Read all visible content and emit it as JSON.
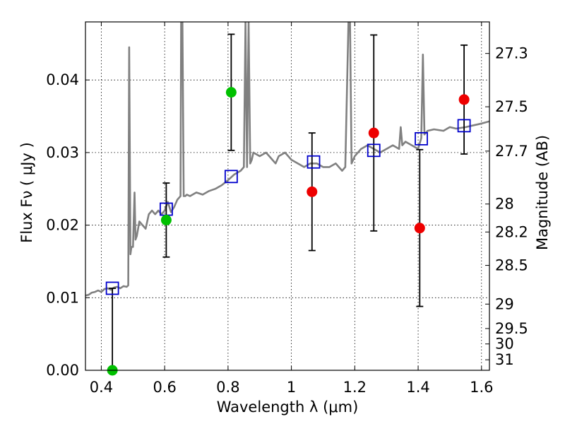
{
  "chart_data": {
    "type": "scatter",
    "xlabel": "Wavelength  λ (μm)",
    "ylabel": "Flux  Fν  ( μJy )",
    "y2label": "Magnitude (AB)",
    "xlim": [
      0.35,
      1.625
    ],
    "ylim": [
      0.0,
      0.048
    ],
    "grid": true,
    "x_ticks": [
      {
        "value": 0.4,
        "label": "0.4"
      },
      {
        "value": 0.6,
        "label": "0.6"
      },
      {
        "value": 0.8,
        "label": "0.8"
      },
      {
        "value": 1.0,
        "label": "1"
      },
      {
        "value": 1.2,
        "label": "1.2"
      },
      {
        "value": 1.4,
        "label": "1.4"
      },
      {
        "value": 1.6,
        "label": "1.6"
      }
    ],
    "y_ticks": [
      {
        "value": 0.0,
        "label": "0.00"
      },
      {
        "value": 0.01,
        "label": "0.01"
      },
      {
        "value": 0.02,
        "label": "0.02"
      },
      {
        "value": 0.03,
        "label": "0.03"
      },
      {
        "value": 0.04,
        "label": "0.04"
      }
    ],
    "mag_ticks": [
      "27.3",
      "27.5",
      "27.7",
      "28",
      "28.2",
      "28.5",
      "29",
      "29.5",
      "30",
      "31"
    ],
    "series": [
      {
        "kind": "template_spectrum",
        "color": "#808080",
        "x": [
          0.35,
          0.36,
          0.37,
          0.38,
          0.39,
          0.4,
          0.41,
          0.42,
          0.43,
          0.44,
          0.45,
          0.46,
          0.47,
          0.48,
          0.485,
          0.488,
          0.492,
          0.495,
          0.5,
          0.505,
          0.508,
          0.512,
          0.52,
          0.53,
          0.54,
          0.55,
          0.56,
          0.57,
          0.58,
          0.59,
          0.6,
          0.61,
          0.62,
          0.63,
          0.64,
          0.65,
          0.652,
          0.656,
          0.66,
          0.665,
          0.67,
          0.68,
          0.7,
          0.72,
          0.74,
          0.76,
          0.78,
          0.8,
          0.82,
          0.84,
          0.85,
          0.855,
          0.86,
          0.865,
          0.87,
          0.875,
          0.88,
          0.9,
          0.92,
          0.94,
          0.95,
          0.96,
          0.98,
          1.0,
          1.02,
          1.04,
          1.06,
          1.08,
          1.1,
          1.12,
          1.14,
          1.16,
          1.17,
          1.18,
          1.185,
          1.19,
          1.2,
          1.22,
          1.24,
          1.26,
          1.28,
          1.3,
          1.32,
          1.34,
          1.345,
          1.35,
          1.36,
          1.38,
          1.4,
          1.41,
          1.415,
          1.42,
          1.43,
          1.45,
          1.48,
          1.5,
          1.52,
          1.55,
          1.58,
          1.6,
          1.625
        ],
        "y": [
          0.0103,
          0.0104,
          0.0107,
          0.0108,
          0.011,
          0.0108,
          0.0112,
          0.0113,
          0.0111,
          0.0114,
          0.0115,
          0.0113,
          0.0116,
          0.0115,
          0.0117,
          0.0445,
          0.016,
          0.017,
          0.017,
          0.0245,
          0.018,
          0.0185,
          0.0205,
          0.02,
          0.0195,
          0.0215,
          0.022,
          0.0215,
          0.022,
          0.0215,
          0.022,
          0.0232,
          0.0218,
          0.0225,
          0.0235,
          0.024,
          0.048,
          0.048,
          0.024,
          0.024,
          0.0242,
          0.024,
          0.0245,
          0.0242,
          0.0247,
          0.025,
          0.0255,
          0.0262,
          0.027,
          0.0275,
          0.028,
          0.048,
          0.028,
          0.048,
          0.0285,
          0.029,
          0.03,
          0.0295,
          0.03,
          0.029,
          0.0285,
          0.0295,
          0.03,
          0.029,
          0.0285,
          0.028,
          0.0285,
          0.0285,
          0.028,
          0.028,
          0.0285,
          0.0275,
          0.028,
          0.048,
          0.048,
          0.0285,
          0.0295,
          0.0305,
          0.031,
          0.0305,
          0.03,
          0.0305,
          0.031,
          0.0305,
          0.0335,
          0.031,
          0.0315,
          0.031,
          0.0305,
          0.032,
          0.0435,
          0.0325,
          0.033,
          0.0332,
          0.033,
          0.0335,
          0.0333,
          0.0335,
          0.0338,
          0.034,
          0.0343
        ]
      },
      {
        "kind": "model_photometry",
        "marker": "open-square",
        "color": "#0000cc",
        "x": [
          0.435,
          0.605,
          0.81,
          1.07,
          1.26,
          1.41,
          1.545
        ],
        "y": [
          0.0113,
          0.0222,
          0.0267,
          0.0287,
          0.0303,
          0.0319,
          0.0337
        ]
      },
      {
        "kind": "observed_detections",
        "marker": "filled-circle",
        "color": "#00c000",
        "x": [
          0.435,
          0.605,
          0.81
        ],
        "y": [
          0.0,
          0.0207,
          0.0383
        ],
        "yerr": [
          0.0113,
          0.0051,
          0.008
        ]
      },
      {
        "kind": "observed_upper",
        "marker": "filled-circle",
        "color": "#ee0000",
        "x": [
          1.065,
          1.26,
          1.405,
          1.545
        ],
        "y": [
          0.0246,
          0.0327,
          0.0196,
          0.0373
        ],
        "yerr": [
          0.0081,
          0.0135,
          0.0108,
          0.0075
        ]
      }
    ]
  }
}
